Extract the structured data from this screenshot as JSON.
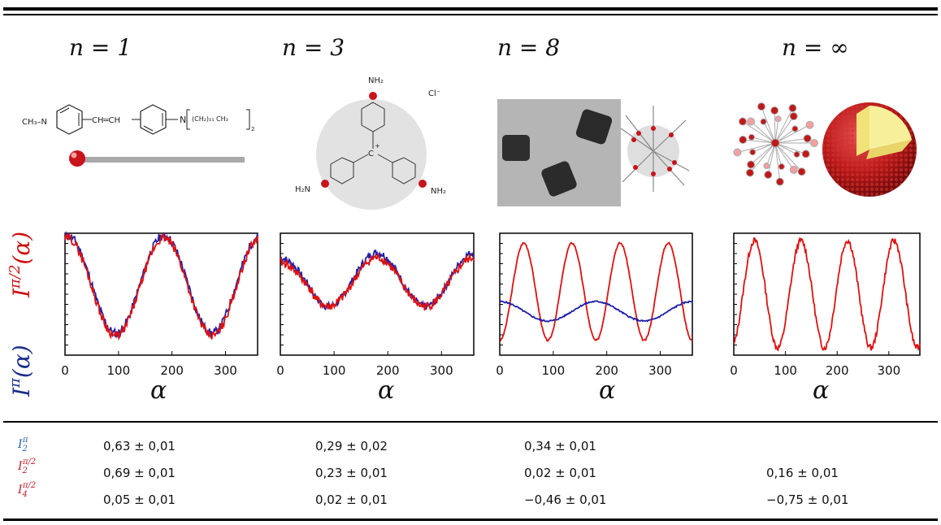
{
  "columns": [
    {
      "n": "n = 1"
    },
    {
      "n": "n = 3"
    },
    {
      "n": "n = 8"
    },
    {
      "n": "n = ∞"
    }
  ],
  "molecule1": {
    "left": "CH₃–N",
    "mid": "CH═CH",
    "right": "N",
    "chain": "(CH₂)₁₅ CH₃",
    "sub": "2"
  },
  "molecule3": {
    "top": "NH₂",
    "ion": "Cl⁻",
    "center": "C",
    "charge": "+",
    "left": "H₂N",
    "right": "NH₂"
  },
  "ylabel_top": "I^{π/2}(α)",
  "ylabel_bottom": "I^{π}(α)",
  "xlabel": "α",
  "chart_data": [
    {
      "type": "line",
      "panel": "n=1",
      "x_ticks": [
        0,
        100,
        200,
        300
      ],
      "xlim": [
        0,
        360
      ],
      "series": [
        {
          "color": "#1f1fa8",
          "values_desc": "I_pi"
        },
        {
          "color": "#dd1111",
          "values_desc": "I_pi2"
        }
      ]
    },
    {
      "type": "line",
      "panel": "n=3",
      "x_ticks": [
        0,
        100,
        200,
        300
      ],
      "xlim": [
        0,
        360
      ],
      "series": [
        {
          "color": "#1f1fa8"
        },
        {
          "color": "#dd1111"
        }
      ]
    },
    {
      "type": "line",
      "panel": "n=8",
      "x_ticks": [
        0,
        100,
        200,
        300
      ],
      "xlim": [
        0,
        360
      ],
      "series": [
        {
          "color": "#dd1111"
        },
        {
          "color": "#1f1fa8"
        }
      ]
    },
    {
      "type": "line",
      "panel": "n=∞",
      "x_ticks": [
        0,
        100,
        200,
        300
      ],
      "xlim": [
        0,
        360
      ],
      "series": [
        {
          "color": "#dd1111"
        }
      ]
    }
  ],
  "table": {
    "rows": [
      {
        "label": "I₂^π",
        "color": "#2a5db0",
        "values": [
          "0,63 ± 0,01",
          "0,29 ± 0,02",
          "0,34 ± 0,01",
          ""
        ]
      },
      {
        "label": "I₂^{π/2}",
        "color": "#c0202a",
        "values": [
          "0,69 ± 0,01",
          "0,23 ± 0,01",
          "0,02 ± 0,01",
          "0,16 ± 0,01"
        ]
      },
      {
        "label": "I₄^{π/2}",
        "color": "#c0202a",
        "values": [
          "0,05 ± 0,01",
          "0,02 ± 0,01",
          "−0,46 ± 0,01",
          "−0,75 ± 0,01"
        ]
      }
    ]
  }
}
